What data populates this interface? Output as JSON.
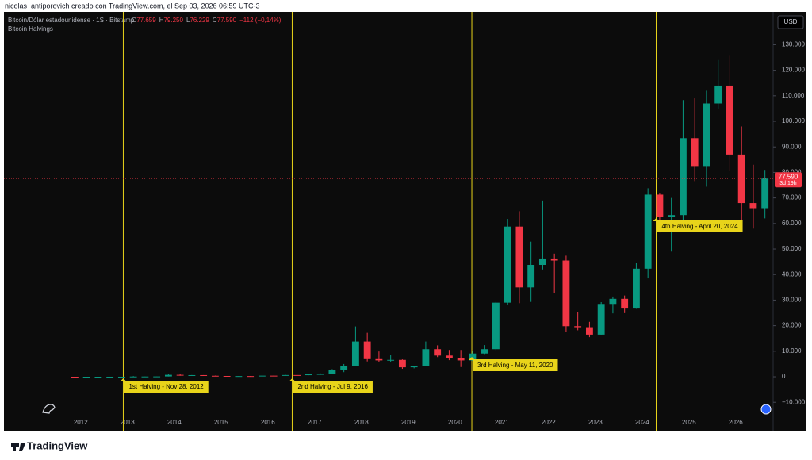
{
  "header": {
    "caption": "nicolas_antiporovich creado con TradingView.com, el Sep 03, 2026 06:59 UTC-3",
    "brand": "TradingView"
  },
  "chart_data": {
    "type": "candlestick",
    "symbol": "Bitcoin/Dólar estadounidense · 1S · Bitstamp",
    "ohlc": [
      {
        "key": "O",
        "value": "77.659"
      },
      {
        "key": "H",
        "value": "79.250"
      },
      {
        "key": "L",
        "value": "76.229"
      },
      {
        "key": "C",
        "value": "77.590"
      }
    ],
    "change": "−112 (−0,14%)",
    "indicator": "Bitcoin Halvings",
    "currency": "USD",
    "last_price": {
      "value": 77590,
      "label": "77.590"
    },
    "countdown": "3d 19h",
    "up_color": "#089981",
    "down_color": "#f23645",
    "x": [
      2011.875,
      2012.125,
      2012.375,
      2012.625,
      2012.875,
      2013.125,
      2013.375,
      2013.625,
      2013.875,
      2014.125,
      2014.375,
      2014.625,
      2014.875,
      2015.125,
      2015.375,
      2015.625,
      2015.875,
      2016.125,
      2016.375,
      2016.625,
      2016.875,
      2017.125,
      2017.375,
      2017.625,
      2017.875,
      2018.125,
      2018.375,
      2018.625,
      2018.875,
      2019.125,
      2019.375,
      2019.625,
      2019.875,
      2020.125,
      2020.375,
      2020.625,
      2020.875,
      2021.125,
      2021.375,
      2021.625,
      2021.875,
      2022.125,
      2022.375,
      2022.625,
      2022.875,
      2023.125,
      2023.375,
      2023.625,
      2023.875,
      2024.125,
      2024.375,
      2024.625,
      2024.875,
      2025.125,
      2025.375,
      2025.625,
      2025.875,
      2026.125,
      2026.375,
      2026.625
    ],
    "open": [
      5,
      5,
      5,
      6,
      12,
      13,
      93,
      97,
      125,
      750,
      450,
      640,
      390,
      320,
      245,
      265,
      235,
      430,
      415,
      670,
      610,
      965,
      1080,
      2500,
      4300,
      13800,
      6900,
      6400,
      6600,
      3700,
      4100,
      10800,
      8300,
      7200,
      6400,
      9100,
      10800,
      29000,
      58800,
      35000,
      43800,
      46300,
      45500,
      19800,
      19400,
      16500,
      28500,
      30500,
      27000,
      42300,
      71300,
      62700,
      63300,
      93400,
      82500,
      107000,
      114000,
      87000,
      68000,
      66000
    ],
    "high": [
      7,
      6,
      7,
      15,
      14,
      266,
      130,
      140,
      1150,
      1000,
      680,
      650,
      450,
      320,
      270,
      315,
      500,
      460,
      780,
      680,
      980,
      1300,
      3000,
      5000,
      19700,
      17200,
      9900,
      8500,
      6800,
      4200,
      13800,
      12300,
      10500,
      10500,
      10000,
      12400,
      29300,
      61800,
      64800,
      52900,
      69000,
      48200,
      47400,
      25200,
      21500,
      29200,
      31400,
      31800,
      44700,
      73800,
      72000,
      70000,
      108300,
      109000,
      112000,
      124000,
      126000,
      98000,
      83000,
      81000
    ],
    "low": [
      2,
      4,
      5,
      7,
      10,
      13,
      65,
      85,
      120,
      400,
      420,
      380,
      300,
      170,
      220,
      210,
      230,
      360,
      410,
      480,
      600,
      750,
      1050,
      1800,
      4100,
      6000,
      5800,
      5900,
      3100,
      3300,
      4100,
      7700,
      6500,
      3800,
      6200,
      8900,
      10400,
      28000,
      28800,
      29300,
      42000,
      32900,
      17600,
      18200,
      15500,
      16500,
      24800,
      24900,
      26900,
      38500,
      56500,
      49000,
      58900,
      76600,
      74400,
      105000,
      80500,
      60000,
      58000,
      62000
    ],
    "close": [
      4,
      5,
      6,
      12,
      13,
      93,
      97,
      125,
      750,
      450,
      640,
      390,
      320,
      245,
      265,
      235,
      430,
      415,
      670,
      610,
      965,
      1080,
      2500,
      4300,
      13800,
      6900,
      6400,
      6600,
      3700,
      4100,
      10800,
      8300,
      7200,
      6400,
      9100,
      10800,
      29000,
      58800,
      35000,
      43800,
      46300,
      45500,
      19800,
      19400,
      16500,
      28500,
      30500,
      27000,
      42300,
      71300,
      62700,
      63300,
      93400,
      82500,
      107000,
      114000,
      87000,
      68000,
      66000,
      77590
    ],
    "xlim": [
      2010.36,
      2026.8
    ],
    "xticks": [
      2012,
      2013,
      2014,
      2015,
      2016,
      2017,
      2018,
      2019,
      2020,
      2021,
      2022,
      2023,
      2024,
      2025,
      2026
    ],
    "ylim": [
      -14900,
      143800
    ],
    "yticks": [
      {
        "value": -10000,
        "label": "−10.000"
      },
      0,
      {
        "value": 10000,
        "label": "10.000"
      },
      {
        "value": 20000,
        "label": "20.000"
      },
      {
        "value": 30000,
        "label": "30.000"
      },
      {
        "value": 40000,
        "label": "40.000"
      },
      {
        "value": 50000,
        "label": "50.000"
      },
      {
        "value": 60000,
        "label": "60.000"
      },
      {
        "value": 70000,
        "label": "70.000"
      },
      {
        "value": 80000,
        "label": "80.000"
      },
      {
        "value": 90000,
        "label": "90.000"
      },
      {
        "value": 100000,
        "label": "100.000"
      },
      {
        "value": 110000,
        "label": "110.000"
      },
      {
        "value": 120000,
        "label": "120.000"
      },
      {
        "value": 130000,
        "label": "130.000"
      }
    ],
    "grid": false,
    "halvings": [
      {
        "x": 2012.91,
        "label": "1st Halving - Nov 28, 2012"
      },
      {
        "x": 2016.52,
        "label": "2nd Halving - Jul 9, 2016"
      },
      {
        "x": 2020.36,
        "label": "3rd Halving - May 11, 2020"
      },
      {
        "x": 2024.3,
        "label": "4th Halving - April 20, 2024"
      }
    ],
    "halving_color": "#e8d41a"
  }
}
